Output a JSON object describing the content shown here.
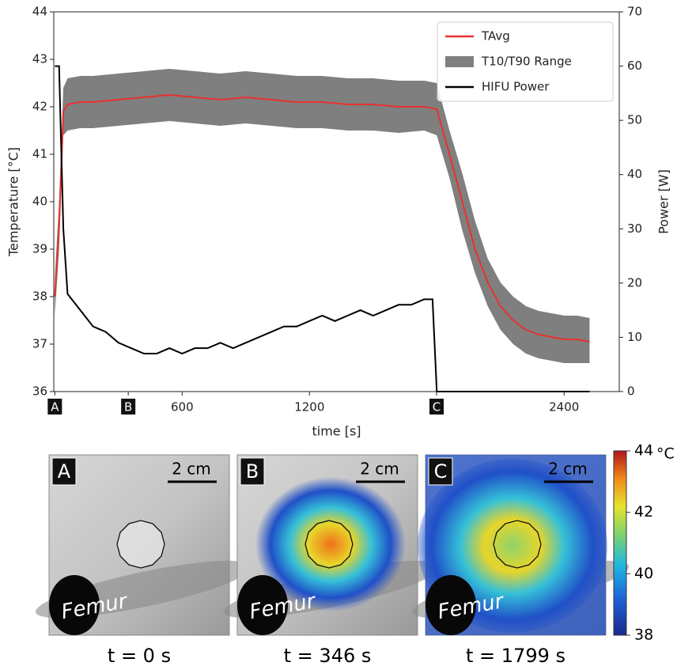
{
  "chart_data": {
    "type": "line",
    "xlabel": "time [s]",
    "ylabel": "Temperature [°C]",
    "y2label": "Power [W]",
    "xlim": [
      -5,
      2660
    ],
    "ylim": [
      36,
      44
    ],
    "y2lim": [
      0,
      70
    ],
    "xticks": [
      {
        "value": 0,
        "label": "A"
      },
      {
        "value": 346,
        "label": "B"
      },
      600,
      1200,
      {
        "value": 1799,
        "label": "C"
      },
      2400
    ],
    "yticks": [
      36,
      37,
      38,
      39,
      40,
      41,
      42,
      43,
      44
    ],
    "y2ticks": [
      0,
      10,
      20,
      30,
      40,
      50,
      60,
      70
    ],
    "legend": "upper right",
    "series": [
      {
        "name": "TAvg",
        "color": "#e8312f",
        "x": [
          0,
          20,
          40,
          60,
          120,
          180,
          300,
          420,
          540,
          660,
          780,
          900,
          1020,
          1140,
          1260,
          1380,
          1500,
          1620,
          1740,
          1800,
          1860,
          1920,
          1980,
          2040,
          2100,
          2160,
          2220,
          2280,
          2340,
          2400,
          2460,
          2520
        ],
        "values": [
          38.0,
          39.5,
          41.9,
          42.05,
          42.1,
          42.1,
          42.15,
          42.2,
          42.25,
          42.2,
          42.15,
          42.2,
          42.15,
          42.1,
          42.1,
          42.05,
          42.05,
          42.0,
          42.0,
          41.95,
          41.0,
          40.0,
          39.0,
          38.3,
          37.8,
          37.5,
          37.3,
          37.2,
          37.15,
          37.1,
          37.1,
          37.05
        ]
      },
      {
        "name": "T10/T90 Range",
        "color": "#7f7f7f",
        "x": [
          0,
          20,
          40,
          60,
          120,
          180,
          300,
          420,
          540,
          660,
          780,
          900,
          1020,
          1140,
          1260,
          1380,
          1500,
          1620,
          1740,
          1800,
          1860,
          1920,
          1980,
          2040,
          2100,
          2160,
          2220,
          2280,
          2340,
          2400,
          2460,
          2520
        ],
        "lower": [
          37.6,
          39.0,
          41.4,
          41.5,
          41.55,
          41.55,
          41.6,
          41.65,
          41.7,
          41.65,
          41.6,
          41.65,
          41.6,
          41.55,
          41.55,
          41.5,
          41.5,
          41.45,
          41.5,
          41.4,
          40.5,
          39.4,
          38.5,
          37.8,
          37.3,
          37.0,
          36.8,
          36.7,
          36.65,
          36.6,
          36.6,
          36.6
        ],
        "upper": [
          38.4,
          40.0,
          42.4,
          42.6,
          42.65,
          42.65,
          42.7,
          42.75,
          42.8,
          42.75,
          42.7,
          42.75,
          42.7,
          42.65,
          42.65,
          42.6,
          42.6,
          42.55,
          42.55,
          42.5,
          41.5,
          40.6,
          39.6,
          38.8,
          38.3,
          38.0,
          37.8,
          37.7,
          37.65,
          37.6,
          37.6,
          37.55
        ]
      },
      {
        "name": "HIFU Power",
        "color": "#000000",
        "axis": "y2",
        "x": [
          0,
          20,
          40,
          60,
          120,
          180,
          240,
          300,
          360,
          420,
          480,
          540,
          600,
          660,
          720,
          780,
          840,
          900,
          960,
          1020,
          1080,
          1140,
          1200,
          1260,
          1320,
          1380,
          1440,
          1500,
          1560,
          1620,
          1680,
          1740,
          1780,
          1800,
          2520
        ],
        "values": [
          60,
          60,
          30,
          18,
          15,
          12,
          11,
          9,
          8,
          7,
          7,
          8,
          7,
          8,
          8,
          9,
          8,
          9,
          10,
          11,
          12,
          12,
          13,
          14,
          13,
          14,
          15,
          14,
          15,
          16,
          16,
          17,
          17,
          0,
          0
        ]
      }
    ]
  },
  "panels": [
    {
      "label": "A",
      "scale": "2 cm",
      "structure": "Femur",
      "caption": "t = 0 s"
    },
    {
      "label": "B",
      "scale": "2 cm",
      "structure": "Femur",
      "caption": "t = 346 s"
    },
    {
      "label": "C",
      "scale": "2 cm",
      "structure": "Femur",
      "caption": "t = 1799 s"
    }
  ],
  "colorbar": {
    "lim": [
      38,
      44
    ],
    "ticks": [
      38,
      40,
      42,
      44
    ],
    "unit": "°C"
  }
}
